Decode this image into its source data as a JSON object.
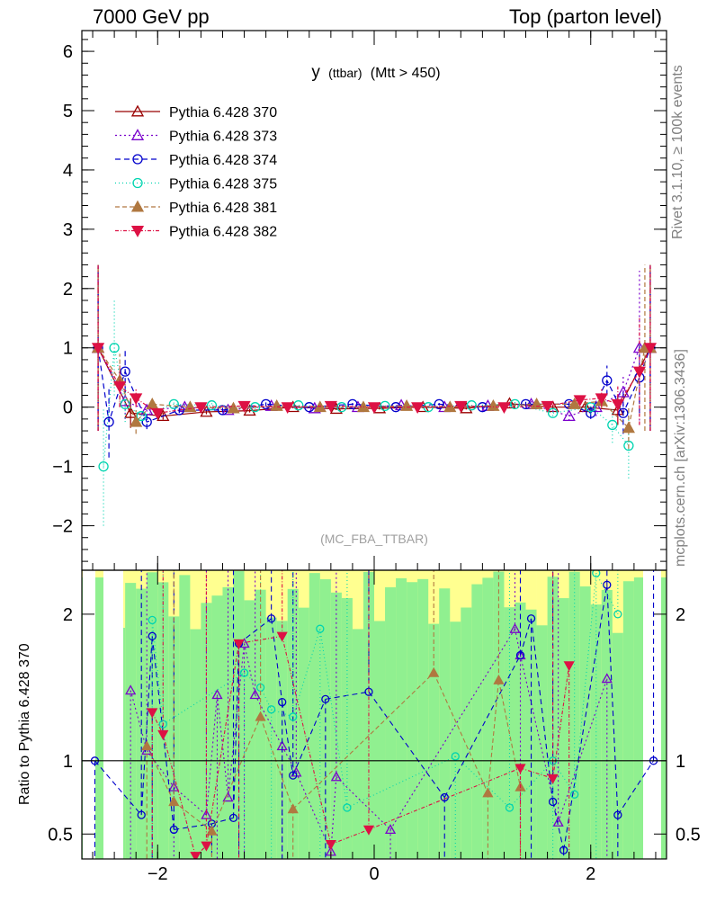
{
  "header": {
    "left": "7000 GeV pp",
    "right": "Top (parton level)"
  },
  "side_labels": {
    "rivet": "Rivet 3.1.10, ≥ 100k events",
    "mcplots": "mcplots.cern.ch [arXiv:1306.3436]"
  },
  "chart_data": [
    {
      "type": "line",
      "title_main": "y",
      "title_small": "(ttbar)",
      "title_rest": "(Mtt > 450)",
      "watermark": "(MC_FBA_TTBAR)",
      "xlim": [
        -2.7,
        2.7
      ],
      "ylim": [
        -2.75,
        6.35
      ],
      "x_ticks": [
        -2,
        0,
        2
      ],
      "y_ticks": [
        -2,
        -1,
        0,
        1,
        2,
        3,
        4,
        5,
        6
      ],
      "legend_position": "top-left",
      "series": [
        {
          "name": "Pythia 6.428 370",
          "color": "#990000",
          "marker": "triangle-open",
          "dash": "",
          "x": [
            -2.55,
            -2.25,
            -1.95,
            -1.55,
            -1.15,
            -0.75,
            -0.35,
            0.05,
            0.45,
            0.85,
            1.25,
            1.65,
            1.95,
            2.25,
            2.55
          ],
          "y": [
            1.0,
            -0.1,
            -0.15,
            -0.08,
            -0.06,
            0.0,
            -0.03,
            -0.02,
            0.0,
            -0.02,
            0.06,
            0.0,
            0.0,
            -0.05,
            1.0
          ],
          "err": [
            1.4,
            0.25,
            0.06,
            0.04,
            0.03,
            0.02,
            0.02,
            0.02,
            0.02,
            0.02,
            0.03,
            0.04,
            0.06,
            0.25,
            1.4
          ]
        },
        {
          "name": "Pythia 6.428 373",
          "color": "#7a00cc",
          "marker": "triangle-open",
          "dash": "2,3",
          "x": [
            -2.55,
            -2.3,
            -2.1,
            -1.75,
            -1.35,
            -0.95,
            -0.55,
            -0.15,
            0.25,
            0.65,
            1.05,
            1.45,
            1.8,
            2.05,
            2.3,
            2.45,
            2.55
          ],
          "y": [
            1.0,
            0.1,
            -0.05,
            0.0,
            -0.05,
            0.02,
            -0.02,
            0.0,
            0.03,
            0.0,
            0.02,
            0.05,
            -0.15,
            0.0,
            0.25,
            1.0,
            1.0
          ],
          "err": [
            1.4,
            0.3,
            0.1,
            0.05,
            0.04,
            0.03,
            0.02,
            0.02,
            0.02,
            0.02,
            0.03,
            0.05,
            0.08,
            0.15,
            0.3,
            1.3,
            1.4
          ]
        },
        {
          "name": "Pythia 6.428 374",
          "color": "#0000cc",
          "marker": "circle-open",
          "dash": "6,4",
          "x": [
            -2.55,
            -2.45,
            -2.3,
            -2.1,
            -1.8,
            -1.4,
            -1.0,
            -0.6,
            -0.2,
            0.2,
            0.6,
            1.0,
            1.4,
            1.8,
            2.0,
            2.15,
            2.3,
            2.45,
            2.55
          ],
          "y": [
            1.0,
            -0.25,
            0.6,
            -0.25,
            -0.05,
            -0.05,
            0.05,
            0.0,
            0.05,
            0.0,
            0.05,
            0.0,
            0.05,
            0.05,
            -0.1,
            0.45,
            -0.1,
            0.5,
            1.0
          ],
          "err": [
            1.4,
            0.6,
            0.35,
            0.12,
            0.05,
            0.04,
            0.03,
            0.02,
            0.02,
            0.02,
            0.02,
            0.03,
            0.04,
            0.05,
            0.1,
            0.25,
            0.35,
            0.6,
            1.4
          ]
        },
        {
          "name": "Pythia 6.428 375",
          "color": "#00d4b0",
          "marker": "circle-open",
          "dash": "1,3",
          "x": [
            -2.5,
            -2.4,
            -2.3,
            -2.15,
            -1.85,
            -1.5,
            -1.1,
            -0.7,
            -0.3,
            0.1,
            0.5,
            0.9,
            1.3,
            1.65,
            2.0,
            2.2,
            2.35
          ],
          "y": [
            -1.0,
            1.0,
            0.05,
            -0.15,
            0.05,
            0.03,
            0.0,
            0.03,
            0.0,
            0.02,
            0.0,
            0.03,
            0.05,
            -0.1,
            0.0,
            -0.3,
            -0.65
          ],
          "err": [
            1.0,
            0.8,
            0.3,
            0.12,
            0.05,
            0.04,
            0.03,
            0.02,
            0.02,
            0.02,
            0.02,
            0.03,
            0.04,
            0.05,
            0.12,
            0.3,
            0.55
          ]
        },
        {
          "name": "Pythia 6.428 381",
          "color": "#b07840",
          "marker": "triangle-filled",
          "dash": "5,3",
          "x": [
            -2.55,
            -2.35,
            -2.2,
            -2.05,
            -1.7,
            -1.3,
            -0.9,
            -0.5,
            -0.1,
            0.3,
            0.7,
            1.1,
            1.5,
            1.85,
            2.1,
            2.35,
            2.5,
            2.55
          ],
          "y": [
            1.0,
            0.45,
            -0.25,
            0.05,
            0.0,
            -0.02,
            0.02,
            0.0,
            0.0,
            0.02,
            0.0,
            0.02,
            0.05,
            0.05,
            0.1,
            -0.35,
            1.0,
            1.0
          ],
          "err": [
            1.4,
            0.45,
            0.2,
            0.1,
            0.05,
            0.04,
            0.03,
            0.02,
            0.02,
            0.02,
            0.02,
            0.03,
            0.04,
            0.05,
            0.12,
            0.35,
            1.4,
            1.4
          ]
        },
        {
          "name": "Pythia 6.428 382",
          "color": "#dd1144",
          "marker": "triangledown-filled",
          "dash": "4,2,1,2",
          "x": [
            -2.55,
            -2.35,
            -2.2,
            -2.0,
            -1.6,
            -1.2,
            -0.8,
            -0.4,
            0.0,
            0.4,
            0.8,
            1.2,
            1.6,
            1.9,
            2.1,
            2.25,
            2.45,
            2.55
          ],
          "y": [
            1.0,
            0.35,
            0.15,
            -0.1,
            0.0,
            0.02,
            0.0,
            0.02,
            0.0,
            0.0,
            0.02,
            0.0,
            0.02,
            0.12,
            0.15,
            0.05,
            0.6,
            1.0
          ],
          "err": [
            1.4,
            0.35,
            0.15,
            0.08,
            0.04,
            0.03,
            0.02,
            0.02,
            0.02,
            0.02,
            0.02,
            0.03,
            0.04,
            0.08,
            0.15,
            0.3,
            0.9,
            1.4
          ]
        }
      ]
    },
    {
      "type": "line",
      "ylabel": "Ratio to Pythia 6.428 370",
      "xlim": [
        -2.7,
        2.7
      ],
      "ylim": [
        0.33,
        2.3
      ],
      "x_ticks": [
        -2,
        0,
        2
      ],
      "y_ticks": [
        0.5,
        1,
        2
      ],
      "reference": 1,
      "band_colors": {
        "inner": "#90f090",
        "outer": "#ffff90"
      },
      "series": [
        {
          "name": "Pythia 6.428 373",
          "color": "#7a00cc",
          "marker": "triangle-open",
          "dash": "2,3",
          "x": [
            -2.25,
            -2.1,
            -1.85,
            -1.55,
            -1.45,
            -1.35,
            -1.2,
            -1.1,
            -0.85,
            -0.72,
            -0.4,
            -0.35,
            0.15,
            1.3,
            1.35,
            1.7,
            2.15
          ],
          "y": [
            1.48,
            1.07,
            0.82,
            0.63,
            1.45,
            0.75,
            1.8,
            1.45,
            1.1,
            0.92,
            0.38,
            0.89,
            0.53,
            1.9,
            1.72,
            0.58,
            1.56
          ]
        },
        {
          "name": "Pythia 6.428 374",
          "color": "#0000cc",
          "marker": "circle-open",
          "dash": "6,4",
          "x": [
            -2.58,
            -2.15,
            -2.05,
            -1.85,
            -1.5,
            -1.3,
            -1.25,
            -0.95,
            -0.85,
            -0.75,
            -0.45,
            -0.05,
            0.65,
            1.35,
            1.45,
            1.65,
            1.75,
            2.15,
            2.25,
            2.58
          ],
          "y": [
            1.0,
            0.63,
            1.85,
            0.53,
            0.57,
            0.61,
            1.8,
            1.97,
            1.4,
            0.9,
            1.42,
            1.47,
            0.75,
            1.72,
            1.97,
            0.72,
            0.39,
            2.2,
            0.63,
            1.0
          ]
        },
        {
          "name": "Pythia 6.428 375",
          "color": "#00d4b0",
          "marker": "circle-open",
          "dash": "1,3",
          "x": [
            -2.05,
            -1.95,
            -1.2,
            -1.05,
            -0.95,
            -0.75,
            -0.5,
            -0.25,
            0.75,
            1.25,
            1.65,
            1.85,
            2.05,
            2.25
          ],
          "y": [
            1.96,
            1.25,
            1.6,
            1.5,
            1.35,
            1.3,
            1.9,
            0.68,
            1.03,
            0.68,
            1.0,
            0.77,
            2.28,
            2.0
          ]
        },
        {
          "name": "Pythia 6.428 381",
          "color": "#b07840",
          "marker": "triangle-filled",
          "dash": "5,3",
          "x": [
            -2.1,
            -1.85,
            -1.5,
            -1.05,
            -0.75,
            0.55,
            1.05,
            1.15,
            1.35
          ],
          "y": [
            1.1,
            0.72,
            0.52,
            1.3,
            0.67,
            1.6,
            0.78,
            1.55,
            0.82
          ]
        },
        {
          "name": "Pythia 6.428 382",
          "color": "#dd1144",
          "marker": "triangledown-filled",
          "dash": "4,2,1,2",
          "x": [
            -2.05,
            -1.95,
            -1.65,
            -1.55,
            -1.25,
            -0.85,
            -0.4,
            -0.05,
            1.35,
            1.65,
            1.8
          ],
          "y": [
            1.33,
            1.18,
            0.35,
            0.42,
            1.8,
            1.85,
            0.43,
            0.53,
            0.95,
            0.88,
            1.65
          ]
        }
      ]
    }
  ]
}
